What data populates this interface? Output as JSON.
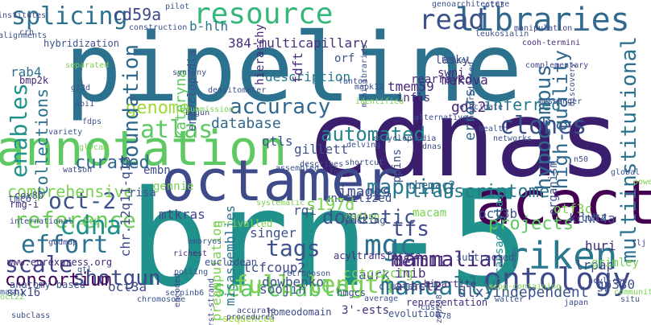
{
  "words": [
    {
      "text": "pipeline",
      "color": "#2c728e",
      "rotate": false
    },
    {
      "text": "brn-5",
      "color": "#21918c",
      "rotate": false
    },
    {
      "text": "cdnas",
      "color": "#3b1f6e",
      "rotate": false
    },
    {
      "text": "annotation",
      "color": "#5ec962",
      "rotate": false
    },
    {
      "text": "octamer",
      "color": "#3e4a89",
      "rotate": false
    },
    {
      "text": "acact",
      "color": "#440154",
      "rotate": false
    },
    {
      "text": "libraries",
      "color": "#31688e",
      "rotate": false
    },
    {
      "text": "resource",
      "color": "#35b779",
      "rotate": false
    },
    {
      "text": "ontology",
      "color": "#3e4989",
      "rotate": false
    },
    {
      "text": "riken",
      "color": "#2a788e",
      "rotate": false
    },
    {
      "text": "searchable",
      "color": "#5ec962",
      "rotate": false
    },
    {
      "text": "full-length",
      "color": "#7ad151",
      "rotate": false
    },
    {
      "text": "manually",
      "color": "#2a788e",
      "rotate": false
    },
    {
      "text": "splicing",
      "color": "#2c728e",
      "rotate": false
    },
    {
      "text": "read",
      "color": "#3b528b",
      "rotate": false
    },
    {
      "text": "automated",
      "color": "#26828e",
      "rotate": false
    },
    {
      "text": "clones",
      "color": "#3b528b",
      "rotate": false
    },
    {
      "text": "accuracy",
      "color": "#31688e",
      "rotate": false
    },
    {
      "text": "atlas",
      "color": "#5ec962",
      "rotate": false
    },
    {
      "text": "genome",
      "color": "#a0da39",
      "rotate": false
    },
    {
      "text": "mapping",
      "color": "#2a788e",
      "rotate": false
    },
    {
      "text": "reference",
      "color": "#6ccd5a",
      "rotate": false
    },
    {
      "text": "oct-2",
      "color": "#3b528b",
      "rotate": false
    },
    {
      "text": "effort",
      "color": "#2c728e",
      "rotate": false
    },
    {
      "text": "cdna",
      "color": "#21918c",
      "rotate": false
    },
    {
      "text": "scale",
      "color": "#404688",
      "rotate": false
    },
    {
      "text": "tags",
      "color": "#3b528b",
      "rotate": false
    },
    {
      "text": "mgc",
      "color": "#2c728e",
      "rotate": false
    },
    {
      "text": "projects",
      "color": "#5ec962",
      "rotate": false
    },
    {
      "text": "shotgun",
      "color": "#3e4989",
      "rotate": false
    },
    {
      "text": "mammalian",
      "color": "#482878",
      "rotate": false
    },
    {
      "text": "domestic",
      "color": "#3b528b",
      "rotate": false
    },
    {
      "text": "transcriptome",
      "color": "#2a788e",
      "rotate": false
    },
    {
      "text": "tfs",
      "color": "#3e4989",
      "rotate": false
    },
    {
      "text": "consortium",
      "color": "#440154",
      "rotate": false
    },
    {
      "text": "comprehensive",
      "color": "#7ad151",
      "rotate": false
    },
    {
      "text": "curated",
      "color": "#31688e",
      "rotate": false
    },
    {
      "text": "database",
      "color": "#31688e",
      "rotate": false
    },
    {
      "text": "qtls",
      "color": "#3b528b",
      "rotate": false
    },
    {
      "text": "gillett",
      "color": "#3b528b",
      "rotate": false
    },
    {
      "text": "images",
      "color": "#3e4989",
      "rotate": false
    },
    {
      "text": "dlx-independent",
      "color": "#3b528b",
      "rotate": false
    },
    {
      "text": "inferred",
      "color": "#2a788e",
      "rotate": false
    },
    {
      "text": "description",
      "color": "#2a788e",
      "rotate": false
    },
    {
      "text": "b-hlh",
      "color": "#2c728e",
      "rotate": false
    },
    {
      "text": "384-multicapillary",
      "color": "#472d7b",
      "rotate": false
    },
    {
      "text": "orf",
      "color": "#3b528b",
      "rotate": false
    },
    {
      "text": "cd59a",
      "color": "#3e4a89",
      "rotate": false
    },
    {
      "text": "rab4",
      "color": "#2c728e",
      "rotate": false
    },
    {
      "text": "makova",
      "color": "#482878",
      "rotate": false
    },
    {
      "text": "lasky",
      "color": "#3e4989",
      "rotate": false
    },
    {
      "text": "swni",
      "color": "#482878",
      "rotate": false
    },
    {
      "text": "rearrayed",
      "color": "#472d7b",
      "rotate": false
    },
    {
      "text": "tmem59",
      "color": "#482878",
      "rotate": false
    },
    {
      "text": "infls",
      "color": "#472d7b",
      "rotate": false
    },
    {
      "text": "gdi2",
      "color": "#482878",
      "rotate": false
    },
    {
      "text": "macam",
      "color": "#7ad151",
      "rotate": false
    },
    {
      "text": "errors",
      "color": "#31688e",
      "rotate": true
    },
    {
      "text": "hypocampus",
      "color": "#31688e",
      "rotate": true
    },
    {
      "text": "high-quality",
      "color": "#31688e",
      "rotate": true
    },
    {
      "text": "multiinstitutional",
      "color": "#2c728e",
      "rotate": true
    },
    {
      "text": "enables",
      "color": "#21918c",
      "rotate": true
    },
    {
      "text": "collections",
      "color": "#2c728e",
      "rotate": true
    },
    {
      "text": "foundation",
      "color": "#31688e",
      "rotate": true
    },
    {
      "text": "encyclopedia",
      "color": "#3b528b",
      "rotate": true
    },
    {
      "text": "kateryna",
      "color": "#5ec962",
      "rotate": true
    },
    {
      "text": "hierarchy",
      "color": "#482878",
      "rotate": true
    },
    {
      "text": "fdft",
      "color": "#482878",
      "rotate": true
    },
    {
      "text": "chr.12q11-q13",
      "color": "#3e4989",
      "rotate": true
    },
    {
      "text": "misassemblies",
      "color": "#2c728e",
      "rotate": true
    },
    {
      "text": "preamputation",
      "color": "#7ad151",
      "rotate": true
    },
    {
      "text": "ppins",
      "color": "#3b528b",
      "rotate": true
    },
    {
      "text": "transacetylase",
      "color": "#21918c",
      "rotate": true
    },
    {
      "text": "organism",
      "color": "#3b528b",
      "rotate": true
    },
    {
      "text": "3'-ests",
      "color": "#472d7b",
      "rotate": false
    },
    {
      "text": "cox8b",
      "color": "#3e4989",
      "rotate": false
    },
    {
      "text": "bmp2k",
      "color": "#482878",
      "rotate": false
    },
    {
      "text": "hybridization",
      "color": "#3b528b",
      "rotate": false
    },
    {
      "text": "risa",
      "color": "#3b528b",
      "rotate": false
    },
    {
      "text": "gennie",
      "color": "#7ad151",
      "rotate": false
    },
    {
      "text": "embn",
      "color": "#3e4989",
      "rotate": false
    },
    {
      "text": "tmc6",
      "color": "#3b528b",
      "rotate": false
    },
    {
      "text": "rmg-i",
      "color": "#482878",
      "rotate": false
    },
    {
      "text": "mtkras",
      "color": "#3e4989",
      "rotate": false
    },
    {
      "text": "singer",
      "color": "#3b528b",
      "rotate": false
    },
    {
      "text": "rqi",
      "color": "#3b528b",
      "rotate": false
    },
    {
      "text": "unutilized",
      "color": "#3b528b",
      "rotate": false
    },
    {
      "text": "rhemac2",
      "color": "#31688e",
      "rotate": false
    },
    {
      "text": "otf3c",
      "color": "#7ad151",
      "rotate": false
    },
    {
      "text": "oct3b",
      "color": "#3b528b",
      "rotate": false
    },
    {
      "text": "kcnh4a",
      "color": "#3b528b",
      "rotate": false
    },
    {
      "text": "huri",
      "color": "#482878",
      "rotate": false
    },
    {
      "text": "lrpap",
      "color": "#3e4989",
      "rotate": false
    },
    {
      "text": "lutz",
      "color": "#3b528b",
      "rotate": false
    },
    {
      "text": "grimley",
      "color": "#7ad151",
      "rotate": false
    },
    {
      "text": "gp330",
      "color": "#3b528b",
      "rotate": false
    },
    {
      "text": "s197d",
      "color": "#7ad151",
      "rotate": false
    },
    {
      "text": "aurk",
      "color": "#3b528b",
      "rotate": false
    },
    {
      "text": "defb11",
      "color": "#482878",
      "rotate": false
    },
    {
      "text": "cctcccctg",
      "color": "#7ad151",
      "rotate": false
    },
    {
      "text": "inib",
      "color": "#472d7b",
      "rotate": false
    },
    {
      "text": "acact2",
      "color": "#482878",
      "rotate": false
    },
    {
      "text": "dowbenko",
      "color": "#3b528b",
      "rotate": false
    },
    {
      "text": "tcfcoup2",
      "color": "#3e4989",
      "rotate": false
    },
    {
      "text": "oct3a",
      "color": "#3e4989",
      "rotate": false
    },
    {
      "text": "soojin",
      "color": "#3b528b",
      "rotate": false
    },
    {
      "text": "snx16",
      "color": "#3e4989",
      "rotate": false
    },
    {
      "text": "anatomy-based",
      "color": "#3b528b",
      "rotate": false
    },
    {
      "text": "www.eurexpress.org",
      "color": "#482878",
      "rotate": false
    },
    {
      "text": "acyltransferase",
      "color": "#472d7b",
      "rotate": false
    },
    {
      "text": "homeodomain",
      "color": "#3e4989",
      "rotate": false
    },
    {
      "text": "representation",
      "color": "#472d7b",
      "rotate": false
    },
    {
      "text": "evolution",
      "color": "#3b528b",
      "rotate": false
    },
    {
      "text": "sequenced",
      "color": "#a0da39",
      "rotate": false
    },
    {
      "text": "euclidean",
      "color": "#3b528b",
      "rotate": false
    },
    {
      "text": "procedures",
      "color": "#3e4989",
      "rotate": false
    },
    {
      "text": "polling",
      "color": "#3b528b",
      "rotate": false
    },
    {
      "text": "richest",
      "color": "#482878",
      "rotate": false
    },
    {
      "text": "embryos",
      "color": "#3b528b",
      "rotate": false
    },
    {
      "text": "unrivalled",
      "color": "#7ad151",
      "rotate": false
    },
    {
      "text": "systematic",
      "color": "#7ad151",
      "rotate": false
    },
    {
      "text": "subtracted",
      "color": "#3b528b",
      "rotate": false
    },
    {
      "text": "bipartite",
      "color": "#482878",
      "rotate": false
    },
    {
      "text": "clusters",
      "color": "#3b528b",
      "rotate": false
    },
    {
      "text": "hmgcs",
      "color": "#3b528b",
      "rotate": false
    },
    {
      "text": "mcpg-containing",
      "color": "#7ad151",
      "rotate": false
    },
    {
      "text": "coding",
      "color": "#7ad151",
      "rotate": false
    },
    {
      "text": "picking",
      "color": "#3b528b",
      "rotate": false
    },
    {
      "text": "assembled",
      "color": "#3b528b",
      "rotate": false
    },
    {
      "text": "describes",
      "color": "#3e4989",
      "rotate": false
    },
    {
      "text": "shortcut",
      "color": "#3b528b",
      "rotate": false
    },
    {
      "text": "foxo1b",
      "color": "#3e4989",
      "rotate": false
    },
    {
      "text": "delving",
      "color": "#3b528b",
      "rotate": false
    },
    {
      "text": "networks",
      "color": "#3b528b",
      "rotate": false
    },
    {
      "text": "encyclopaedia",
      "color": "#3e4989",
      "rotate": false
    },
    {
      "text": "alternative",
      "color": "#3b528b",
      "rotate": false
    },
    {
      "text": "complementary",
      "color": "#3e4989",
      "rotate": false
    },
    {
      "text": "cooh-termini",
      "color": "#472d7b",
      "rotate": false
    },
    {
      "text": "manipulation",
      "color": "#3e4989",
      "rotate": false
    },
    {
      "text": "genoarchitecture",
      "color": "#3b528b",
      "rotate": false
    },
    {
      "text": "leukosialin",
      "color": "#3b528b",
      "rotate": false
    },
    {
      "text": "construction",
      "color": "#3b528b",
      "rotate": false
    },
    {
      "text": "alignments",
      "color": "#3b528b",
      "rotate": false
    },
    {
      "text": "institutes",
      "color": "#3e4989",
      "rotate": false
    },
    {
      "text": "minilibraries",
      "color": "#3b528b",
      "rotate": true
    },
    {
      "text": "discovery",
      "color": "#3b528b",
      "rotate": true
    },
    {
      "text": "nonpredicted",
      "color": "#3b528b",
      "rotate": true
    },
    {
      "text": "messenger",
      "color": "#3b528b",
      "rotate": false
    },
    {
      "text": "elucidate",
      "color": "#3e4989",
      "rotate": false
    },
    {
      "text": "variety",
      "color": "#3b528b",
      "rotate": false
    },
    {
      "text": "watson",
      "color": "#3e4989",
      "rotate": false
    },
    {
      "text": "international",
      "color": "#3e4989",
      "rotate": false
    },
    {
      "text": "subclass",
      "color": "#3e4989",
      "rotate": false
    },
    {
      "text": "chromosome",
      "color": "#3b528b",
      "rotate": false
    },
    {
      "text": "accurate",
      "color": "#3e4989",
      "rotate": false
    },
    {
      "text": "average",
      "color": "#3b528b",
      "rotate": false
    },
    {
      "text": "japan",
      "color": "#3e4989",
      "rotate": false
    },
    {
      "text": "community",
      "color": "#7ad151",
      "rotate": false
    },
    {
      "text": "powerful",
      "color": "#7ad151",
      "rotate": false
    },
    {
      "text": "situ",
      "color": "#3b528b",
      "rotate": false
    },
    {
      "text": "global",
      "color": "#3b528b",
      "rotate": false
    },
    {
      "text": "synteny",
      "color": "#3b528b",
      "rotate": false
    },
    {
      "text": "densitometer",
      "color": "#3b528b",
      "rotate": false
    },
    {
      "text": "abi1",
      "color": "#3b528b",
      "rotate": false
    },
    {
      "text": "mapk12",
      "color": "#3e4989",
      "rotate": false
    },
    {
      "text": "n50",
      "color": "#3e4989",
      "rotate": false
    },
    {
      "text": "b78",
      "color": "#3e4989",
      "rotate": false
    },
    {
      "text": "cds1",
      "color": "#3b528b",
      "rotate": false
    },
    {
      "text": "acyl-coa",
      "color": "#3e4989",
      "rotate": false
    },
    {
      "text": "flj",
      "color": "#3e4989",
      "rotate": false
    },
    {
      "text": "walter",
      "color": "#3b528b",
      "rotate": false
    },
    {
      "text": "zfp238",
      "color": "#3b528b",
      "rotate": true
    },
    {
      "text": "serpinb6",
      "color": "#3b528b",
      "rotate": false
    },
    {
      "text": "qtl",
      "color": "#3b528b",
      "rotate": false
    },
    {
      "text": "gudmap",
      "color": "#3e4989",
      "rotate": false
    },
    {
      "text": "glycam",
      "color": "#7ad151",
      "rotate": false
    },
    {
      "text": "fdps",
      "color": "#3b528b",
      "rotate": false
    },
    {
      "text": "begun",
      "color": "#3e4989",
      "rotate": false
    },
    {
      "text": "crh",
      "color": "#3b528b",
      "rotate": false
    },
    {
      "text": "otf3",
      "color": "#3e4989",
      "rotate": false
    },
    {
      "text": "pilot",
      "color": "#3b528b",
      "rotate": false
    },
    {
      "text": "fantom",
      "color": "#3b528b",
      "rotate": false
    },
    {
      "text": "g13d",
      "color": "#3b528b",
      "rotate": false
    },
    {
      "text": "separated",
      "color": "#7ad151",
      "rotate": false
    },
    {
      "text": "identified",
      "color": "#7ad151",
      "rotate": false
    },
    {
      "text": "henzel",
      "color": "#3b528b",
      "rotate": false
    },
    {
      "text": "health",
      "color": "#3b528b",
      "rotate": false
    },
    {
      "text": "dnas",
      "color": "#3b528b",
      "rotate": false
    },
    {
      "text": "first-strand",
      "color": "#3e4989",
      "rotate": true
    },
    {
      "text": "encoded",
      "color": "#3e4989",
      "rotate": true
    },
    {
      "text": "octl",
      "color": "#7ad151",
      "rotate": false
    },
    {
      "text": "oct22",
      "color": "#7ad151",
      "rotate": false
    },
    {
      "text": "mash1",
      "color": "#3b528b",
      "rotate": false
    },
    {
      "text": "retroposon",
      "color": "#3b528b",
      "rotate": false
    },
    {
      "text": "submission",
      "color": "#7ad151",
      "rotate": false
    },
    {
      "text": "ser197",
      "color": "#7ad151",
      "rotate": false
    },
    {
      "text": "otf3",
      "color": "#3e4989",
      "rotate": false
    }
  ]
}
